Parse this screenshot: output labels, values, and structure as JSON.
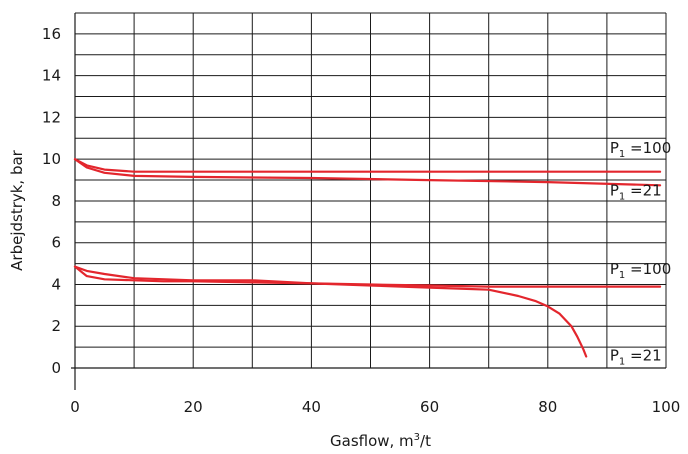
{
  "chart_data": {
    "type": "line",
    "xlabel_text": "Gasflow, m",
    "xlabel_sup": "3",
    "xlabel_tail": "/t",
    "ylabel": "Arbejdstryk, bar",
    "xlim": [
      0,
      100
    ],
    "ylim": [
      0,
      17
    ],
    "xticks": [
      0,
      20,
      40,
      60,
      80,
      100
    ],
    "yticks": [
      0,
      2,
      4,
      6,
      8,
      10,
      12,
      14,
      16
    ],
    "x_grid": [
      0,
      10,
      20,
      30,
      40,
      50,
      60,
      70,
      80,
      90,
      100
    ],
    "y_grid": [
      0,
      1,
      2,
      3,
      4,
      5,
      6,
      7,
      8,
      9,
      10,
      11,
      12,
      13,
      14,
      15,
      16,
      17
    ],
    "grid": true,
    "line_color": "#e3262d",
    "series": [
      {
        "x": [
          0,
          2,
          5,
          10,
          20,
          40,
          60,
          80,
          99
        ],
        "y": [
          10,
          9.7,
          9.5,
          9.4,
          9.4,
          9.4,
          9.4,
          9.4,
          9.4
        ]
      },
      {
        "x": [
          0,
          2,
          5,
          10,
          20,
          40,
          60,
          80,
          99
        ],
        "y": [
          10,
          9.6,
          9.35,
          9.2,
          9.15,
          9.1,
          9.0,
          8.9,
          8.75
        ]
      },
      {
        "x": [
          0,
          2,
          5,
          10,
          15,
          20,
          30,
          40,
          50,
          60,
          70,
          80,
          99
        ],
        "y": [
          4.85,
          4.4,
          4.25,
          4.2,
          4.15,
          4.15,
          4.1,
          4.05,
          4.0,
          3.95,
          3.9,
          3.9,
          3.9
        ]
      },
      {
        "x": [
          0,
          2,
          5,
          10,
          20,
          30,
          40,
          50,
          60,
          65,
          70,
          75,
          78,
          80,
          82,
          84,
          85,
          86,
          86.5
        ],
        "y": [
          4.85,
          4.65,
          4.5,
          4.3,
          4.2,
          4.2,
          4.05,
          3.95,
          3.85,
          3.8,
          3.75,
          3.45,
          3.2,
          2.95,
          2.6,
          2.0,
          1.5,
          0.9,
          0.55
        ]
      }
    ],
    "annotations": [
      {
        "prefix": "P",
        "sub": "1",
        "suffix": " =100",
        "x": 90.5,
        "y": 10.3
      },
      {
        "prefix": "P",
        "sub": "1",
        "suffix": " =21",
        "x": 90.5,
        "y": 8.25
      },
      {
        "prefix": "P",
        "sub": "1",
        "suffix": " =100",
        "x": 90.5,
        "y": 4.5
      },
      {
        "prefix": "P",
        "sub": "1",
        "suffix": " =21",
        "x": 90.5,
        "y": 0.35
      }
    ]
  }
}
